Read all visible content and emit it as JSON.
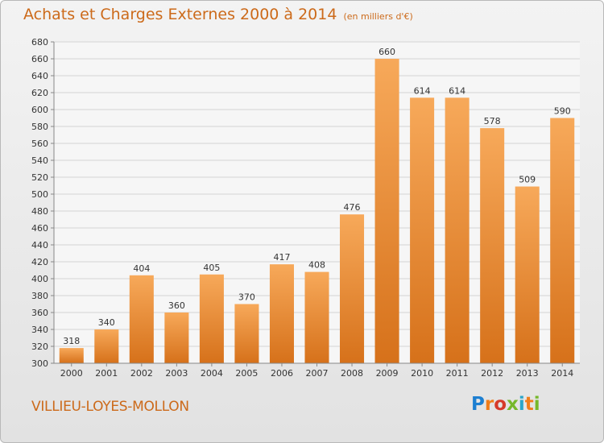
{
  "chart_data": {
    "type": "bar",
    "title": "Achats et Charges Externes 2000 à 2014",
    "subtitle": "(en milliers d'€)",
    "xlabel": "",
    "ylabel": "",
    "categories": [
      "2000",
      "2001",
      "2002",
      "2003",
      "2004",
      "2005",
      "2006",
      "2007",
      "2008",
      "2009",
      "2010",
      "2011",
      "2012",
      "2013",
      "2014"
    ],
    "values": [
      318,
      340,
      404,
      360,
      405,
      370,
      417,
      408,
      476,
      660,
      614,
      614,
      578,
      509,
      590
    ],
    "ylim": [
      300,
      680
    ],
    "yticks": [
      300,
      320,
      340,
      360,
      380,
      400,
      420,
      440,
      460,
      480,
      500,
      520,
      540,
      560,
      580,
      600,
      620,
      640,
      660,
      680
    ],
    "grid": true,
    "legend": "none",
    "bar_color": "#f08c2e",
    "bar_color_light": "#f7a95a",
    "bar_color_dark": "#d6711a"
  },
  "footer": {
    "commune": "VILLIEU-LOYES-MOLLON",
    "logo": "Proxiti"
  }
}
